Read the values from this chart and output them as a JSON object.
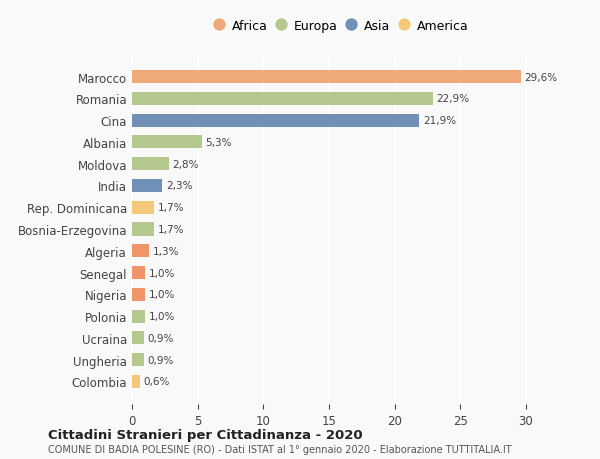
{
  "countries": [
    "Colombia",
    "Ungheria",
    "Ucraina",
    "Polonia",
    "Nigeria",
    "Senegal",
    "Algeria",
    "Bosnia-Erzegovina",
    "Rep. Dominicana",
    "India",
    "Moldova",
    "Albania",
    "Cina",
    "Romania",
    "Marocco"
  ],
  "values": [
    0.6,
    0.9,
    0.9,
    1.0,
    1.0,
    1.0,
    1.3,
    1.7,
    1.7,
    2.3,
    2.8,
    5.3,
    21.9,
    22.9,
    29.6
  ],
  "labels": [
    "0,6%",
    "0,9%",
    "0,9%",
    "1,0%",
    "1,0%",
    "1,0%",
    "1,3%",
    "1,7%",
    "1,7%",
    "2,3%",
    "2,8%",
    "5,3%",
    "21,9%",
    "22,9%",
    "29,6%"
  ],
  "colors": [
    "#f5c97a",
    "#b5c98e",
    "#b5c98e",
    "#b5c98e",
    "#f0956a",
    "#f0956a",
    "#f0956a",
    "#b5c98e",
    "#f5c97a",
    "#7090b8",
    "#b5c98e",
    "#b5c98e",
    "#7090b8",
    "#b5c98e",
    "#f0aa7a"
  ],
  "legend_labels": [
    "Africa",
    "Europa",
    "Asia",
    "America"
  ],
  "legend_colors": [
    "#f0aa7a",
    "#b5c98e",
    "#7090b8",
    "#f5c97a"
  ],
  "xlim": [
    0,
    32
  ],
  "xticks": [
    0,
    5,
    10,
    15,
    20,
    25,
    30
  ],
  "title": "Cittadini Stranieri per Cittadinanza - 2020",
  "subtitle": "COMUNE DI BADIA POLESINE (RO) - Dati ISTAT al 1° gennaio 2020 - Elaborazione TUTTITALIA.IT",
  "background_color": "#f9f9f9",
  "grid_color": "#ffffff",
  "bar_height": 0.6
}
